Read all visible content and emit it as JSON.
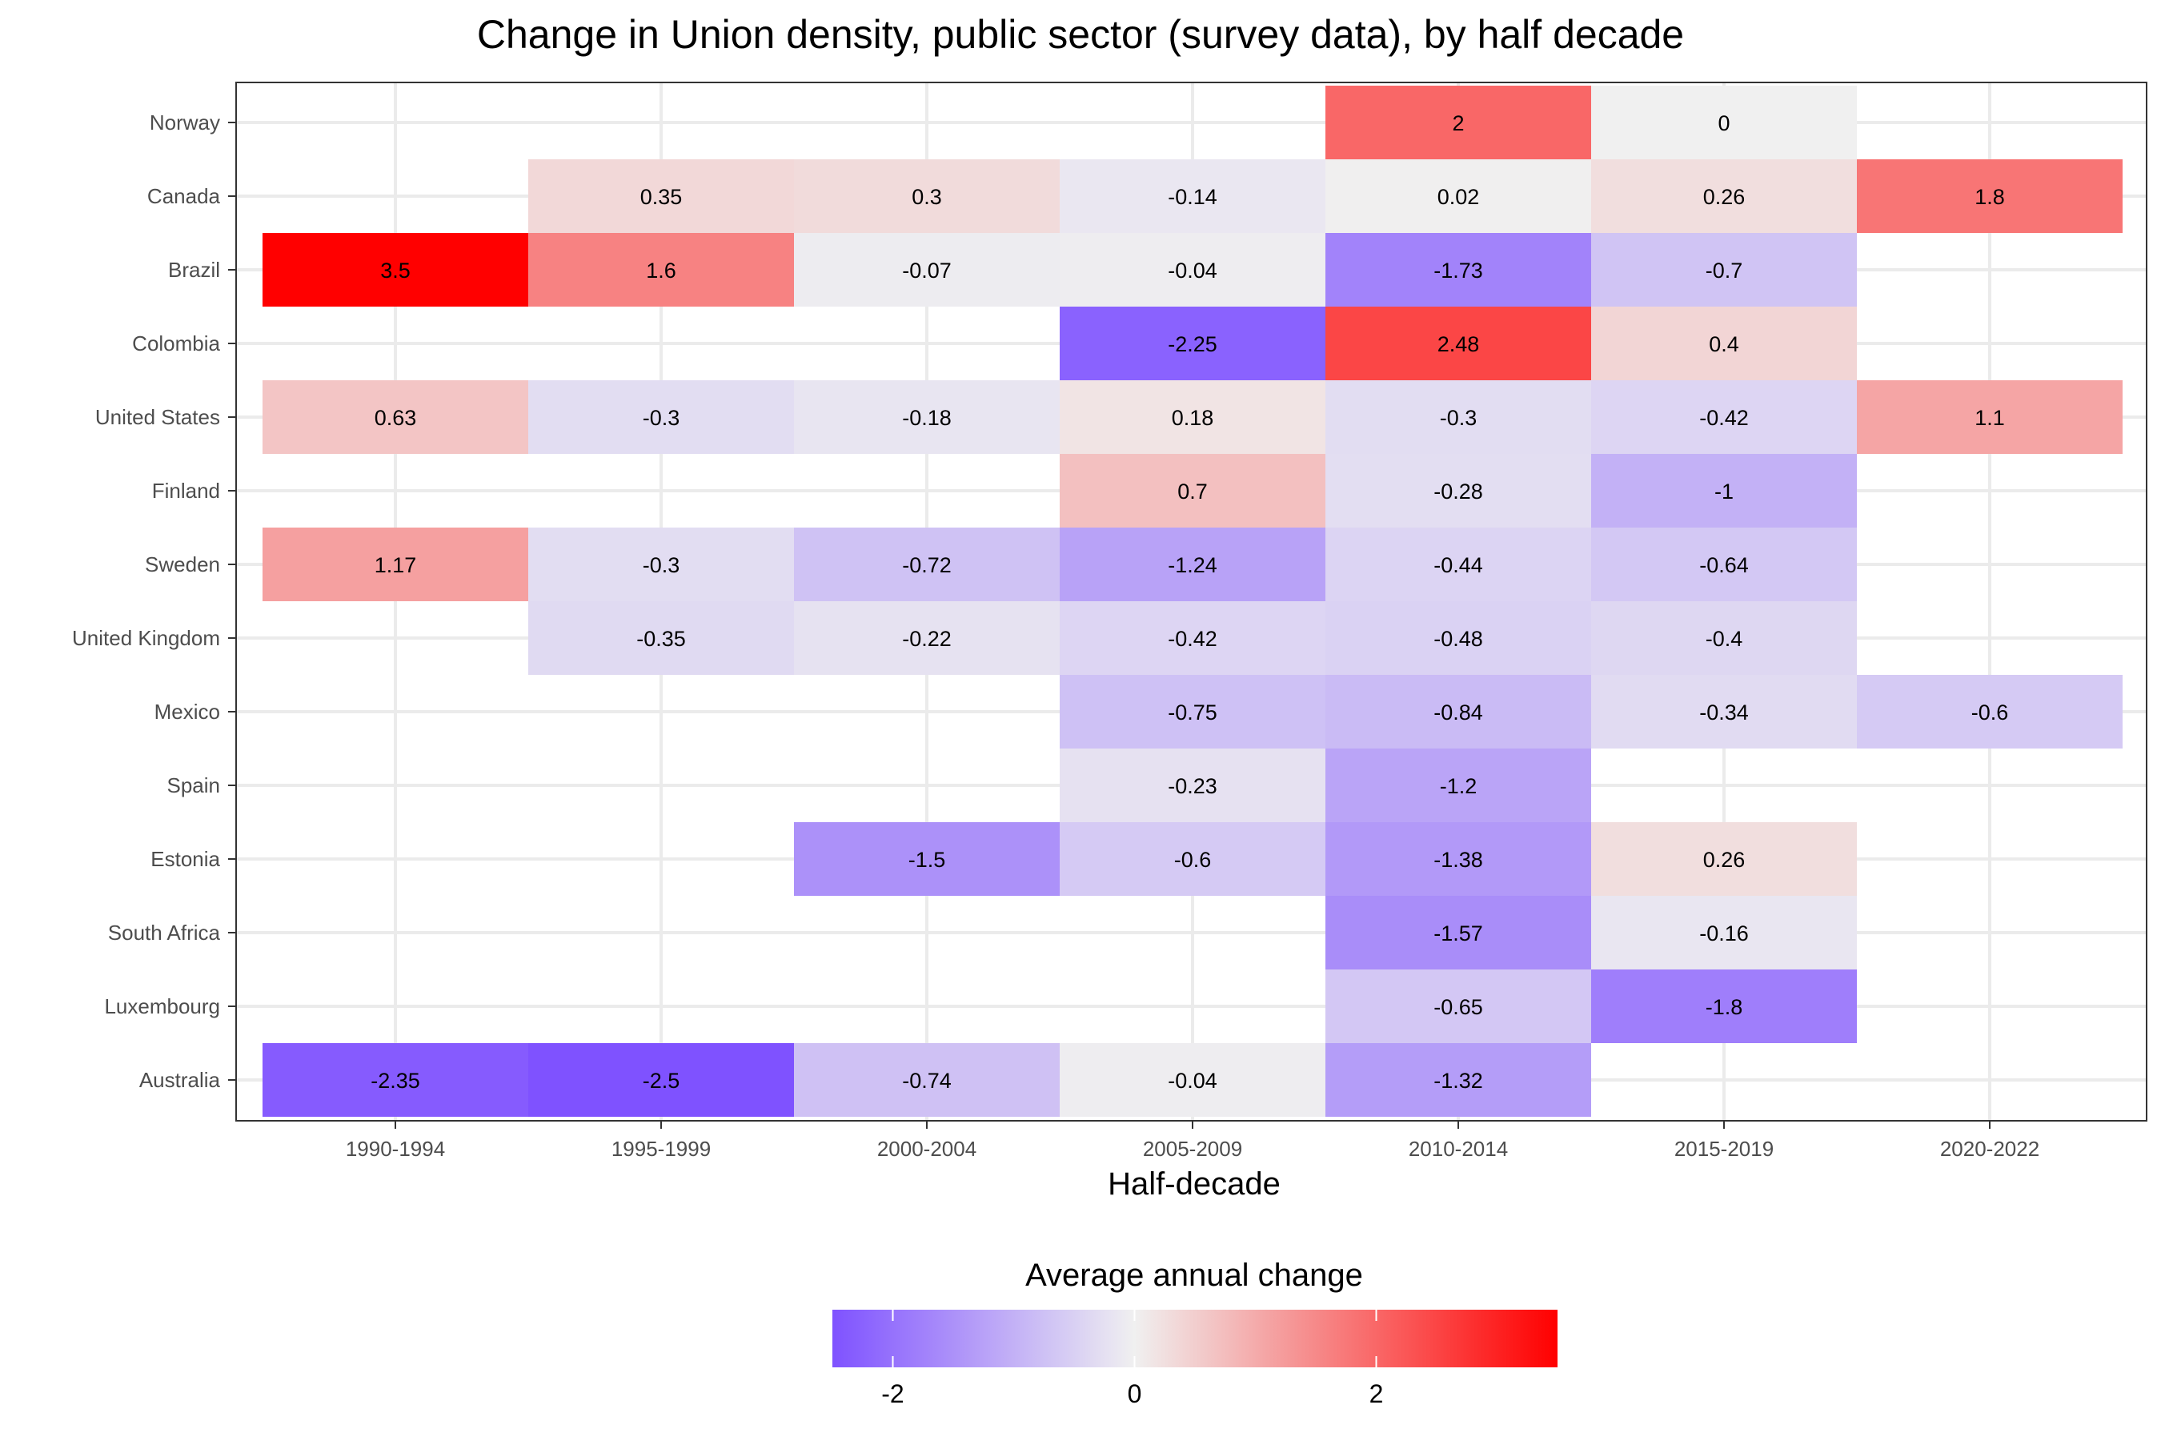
{
  "chart_data": {
    "type": "heatmap",
    "title": "Change in Union density, public sector (survey data), by half decade",
    "xlabel": "Half-decade",
    "ylabel": "",
    "x": [
      "1990-1994",
      "1995-1999",
      "2000-2004",
      "2005-2009",
      "2010-2014",
      "2015-2019",
      "2020-2022"
    ],
    "y": [
      "Norway",
      "Canada",
      "Brazil",
      "Colombia",
      "United States",
      "Finland",
      "Sweden",
      "United Kingdom",
      "Mexico",
      "Spain",
      "Estonia",
      "South Africa",
      "Luxembourg",
      "Australia"
    ],
    "values": [
      [
        null,
        null,
        null,
        null,
        2,
        0,
        null
      ],
      [
        null,
        0.35,
        0.3,
        -0.14,
        0.02,
        0.26,
        1.8
      ],
      [
        3.5,
        1.6,
        -0.07,
        -0.04,
        -1.73,
        -0.7,
        null
      ],
      [
        null,
        null,
        null,
        -2.25,
        2.48,
        0.4,
        null
      ],
      [
        0.63,
        -0.3,
        -0.18,
        0.18,
        -0.3,
        -0.42,
        1.1
      ],
      [
        null,
        null,
        null,
        0.7,
        -0.28,
        -1,
        null
      ],
      [
        1.17,
        -0.3,
        -0.72,
        -1.24,
        -0.44,
        -0.64,
        null
      ],
      [
        null,
        -0.35,
        -0.22,
        -0.42,
        -0.48,
        -0.4,
        null
      ],
      [
        null,
        null,
        null,
        -0.75,
        -0.84,
        -0.34,
        -0.6
      ],
      [
        null,
        null,
        null,
        -0.23,
        -1.2,
        null,
        null
      ],
      [
        null,
        null,
        -1.5,
        -0.6,
        -1.38,
        0.26,
        null
      ],
      [
        null,
        null,
        null,
        null,
        -1.57,
        -0.16,
        null
      ],
      [
        null,
        null,
        null,
        null,
        -0.65,
        -1.8,
        null
      ],
      [
        -2.35,
        -2.5,
        -0.74,
        -0.04,
        -1.32,
        null,
        null
      ]
    ],
    "labels": [
      [
        null,
        null,
        null,
        null,
        "2",
        "0",
        null
      ],
      [
        null,
        "0.35",
        "0.3",
        "-0.14",
        "0.02",
        "0.26",
        "1.8"
      ],
      [
        "3.5",
        "1.6",
        "-0.07",
        "-0.04",
        "-1.73",
        "-0.7",
        null
      ],
      [
        null,
        null,
        null,
        "-2.25",
        "2.48",
        "0.4",
        null
      ],
      [
        "0.63",
        "-0.3",
        "-0.18",
        "0.18",
        "-0.3",
        "-0.42",
        "1.1"
      ],
      [
        null,
        null,
        null,
        "0.7",
        "-0.28",
        "-1",
        null
      ],
      [
        "1.17",
        "-0.3",
        "-0.72",
        "-1.24",
        "-0.44",
        "-0.64",
        null
      ],
      [
        null,
        "-0.35",
        "-0.22",
        "-0.42",
        "-0.48",
        "-0.4",
        null
      ],
      [
        null,
        null,
        null,
        "-0.75",
        "-0.84",
        "-0.34",
        "-0.6"
      ],
      [
        null,
        null,
        null,
        "-0.23",
        "-1.2",
        null,
        null
      ],
      [
        null,
        null,
        "-1.5",
        "-0.6",
        "-1.38",
        "0.26",
        null
      ],
      [
        null,
        null,
        null,
        null,
        "-1.57",
        "-0.16",
        null
      ],
      [
        null,
        null,
        null,
        null,
        "-0.65",
        "-1.8",
        null
      ],
      [
        "-2.35",
        "-2.5",
        "-0.74",
        "-0.04",
        "-1.32",
        null,
        null
      ]
    ],
    "legend": {
      "title": "Average annual change",
      "position": "bottom",
      "range": [
        -2.5,
        3.5
      ],
      "ticks": [
        -2,
        0,
        2
      ],
      "tick_labels": [
        "-2",
        "0",
        "2"
      ],
      "colors": {
        "low": "#7f52ff",
        "mid": "#f0f0f0",
        "high": "#ff0000"
      }
    },
    "grid": true
  }
}
